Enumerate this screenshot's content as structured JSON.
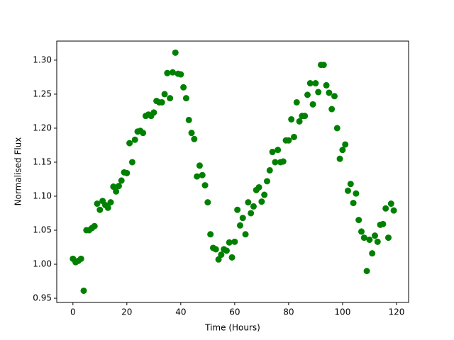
{
  "chart_data": {
    "type": "scatter",
    "xlabel": "Time (Hours)",
    "ylabel": "Normalised Flux",
    "color": "green",
    "xlim": [
      -6,
      124.5
    ],
    "ylim": [
      0.9438,
      1.328
    ],
    "xticks": [
      0,
      20,
      40,
      60,
      80,
      100,
      120
    ],
    "yticks": [
      0.95,
      {
        "value": 1.0,
        "label": "1.00"
      },
      1.05,
      {
        "value": 1.1,
        "label": "1.10"
      },
      1.15,
      {
        "value": 1.2,
        "label": "1.20"
      },
      1.25,
      {
        "value": 1.3,
        "label": "1.30"
      }
    ],
    "grid": false,
    "x": [
      0,
      1,
      2,
      3,
      4,
      5,
      6,
      7,
      8,
      9,
      10,
      11,
      12,
      13,
      14,
      15,
      16,
      17,
      18,
      19,
      20,
      21,
      22,
      23,
      24,
      25,
      26,
      27,
      28,
      29,
      30,
      31,
      32,
      33,
      34,
      35,
      36,
      37,
      38,
      39,
      40,
      41,
      42,
      43,
      44,
      45,
      46,
      47,
      48,
      49,
      50,
      51,
      52,
      53,
      54,
      55,
      56,
      57,
      58,
      59,
      60,
      61,
      62,
      63,
      64,
      65,
      66,
      67,
      68,
      69,
      70,
      71,
      72,
      73,
      74,
      75,
      76,
      77,
      78,
      79,
      80,
      81,
      82,
      83,
      84,
      85,
      86,
      87,
      88,
      89,
      90,
      91,
      92,
      93,
      94,
      95,
      96,
      97,
      98,
      99,
      100,
      101,
      102,
      103,
      104,
      105,
      106,
      107,
      108,
      109,
      110,
      111,
      112,
      113,
      114,
      115,
      116,
      117,
      118,
      119
    ],
    "values": [
      1.008,
      1.003,
      1.005,
      1.008,
      0.961,
      1.05,
      1.05,
      1.053,
      1.056,
      1.089,
      1.08,
      1.093,
      1.087,
      1.083,
      1.091,
      1.114,
      1.107,
      1.115,
      1.123,
      1.135,
      1.134,
      1.178,
      1.15,
      1.183,
      1.195,
      1.196,
      1.193,
      1.218,
      1.22,
      1.218,
      1.223,
      1.24,
      1.238,
      1.238,
      1.25,
      1.281,
      1.244,
      1.282,
      1.311,
      1.28,
      1.279,
      1.26,
      1.244,
      1.212,
      1.193,
      1.184,
      1.129,
      1.145,
      1.131,
      1.116,
      1.091,
      1.044,
      1.024,
      1.022,
      1.007,
      1.014,
      1.022,
      1.02,
      1.032,
      1.01,
      1.033,
      1.08,
      1.057,
      1.068,
      1.044,
      1.091,
      1.075,
      1.085,
      1.109,
      1.113,
      1.092,
      1.102,
      1.122,
      1.138,
      1.165,
      1.15,
      1.168,
      1.15,
      1.151,
      1.182,
      1.182,
      1.213,
      1.187,
      1.238,
      1.21,
      1.218,
      1.218,
      1.249,
      1.266,
      1.235,
      1.266,
      1.253,
      1.293,
      1.293,
      1.263,
      1.252,
      1.228,
      1.247,
      1.2,
      1.155,
      1.168,
      1.176,
      1.108,
      1.118,
      1.09,
      1.104,
      1.065,
      1.048,
      1.039,
      0.99,
      1.036,
      1.016,
      1.042,
      1.033,
      1.058,
      1.059,
      1.082,
      1.039,
      1.089,
      1.079
    ]
  }
}
